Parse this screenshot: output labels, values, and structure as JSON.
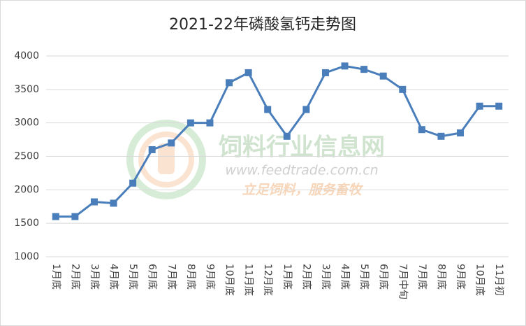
{
  "chart_data": {
    "type": "line",
    "title": "2021-22年磷酸氢钙走势图",
    "categories": [
      "1月底",
      "2月底",
      "3月底",
      "4月底",
      "5月底",
      "6月底",
      "7月底",
      "8月底",
      "9月底",
      "10月底",
      "11月底",
      "12月底",
      "1月底",
      "2月底",
      "3月底",
      "4月底",
      "5月底",
      "6月底",
      "7月中旬",
      "7月底",
      "8月底",
      "9月底",
      "10月底",
      "11月初"
    ],
    "series": [
      {
        "name": "磷酸氢钙",
        "color": "#4a7ebb",
        "values": [
          1600,
          1600,
          1820,
          1800,
          2100,
          2600,
          2700,
          3000,
          3000,
          3600,
          3750,
          3200,
          2800,
          3200,
          3750,
          3850,
          3800,
          3700,
          3500,
          2900,
          2800,
          2850,
          3250,
          3250
        ]
      }
    ],
    "ylim": [
      1000,
      4000
    ],
    "yticks": [
      1000,
      1500,
      2000,
      2500,
      3000,
      3500,
      4000
    ],
    "grid": true,
    "watermark": {
      "site": "饲料行业信息网",
      "url": "www.feedtrade.com.cn",
      "slogan": "立足饲料，服务畜牧"
    }
  }
}
